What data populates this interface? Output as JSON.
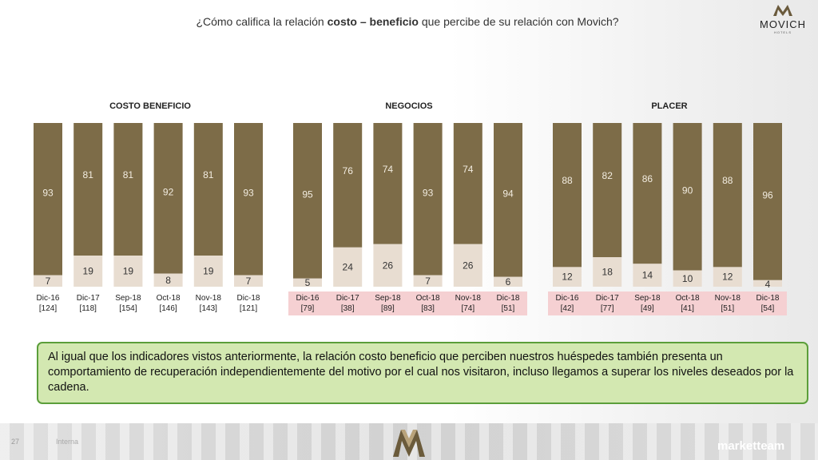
{
  "header": {
    "title_pre": "¿Cómo califica la relación ",
    "title_bold": "costo – beneficio",
    "title_post": " que percibe de su relación con Movich?",
    "logo_text": "MOVICH",
    "logo_sub": "HOTELS"
  },
  "colors": {
    "dark": "#7d6c48",
    "light": "#e8ddd1",
    "label_bg_pink": "#f5d0d2",
    "callout_bg": "#d3e8b1",
    "callout_border": "#5b9e3a"
  },
  "chart_data": [
    {
      "type": "bar",
      "stacked": true,
      "percent": true,
      "title": "COSTO BENEFICIO",
      "categories": [
        "Dic-16",
        "Dic-17",
        "Sep-18",
        "Oct-18",
        "Nov-18",
        "Dic-18"
      ],
      "bases": [
        "[124]",
        "[118]",
        "[154]",
        "[146]",
        "[143]",
        "[121]"
      ],
      "series": [
        {
          "values": [
            93,
            81,
            81,
            92,
            81,
            93
          ]
        },
        {
          "values": [
            7,
            19,
            19,
            8,
            19,
            7
          ]
        }
      ],
      "highlight_labels": false
    },
    {
      "type": "bar",
      "stacked": true,
      "percent": true,
      "title": "NEGOCIOS",
      "categories": [
        "Dic-16",
        "Dic-17",
        "Sep-18",
        "Oct-18",
        "Nov-18",
        "Dic-18"
      ],
      "bases": [
        "[79]",
        "[38]",
        "[89]",
        "[83]",
        "[74]",
        "[51]"
      ],
      "series": [
        {
          "values": [
            95,
            76,
            74,
            93,
            74,
            94
          ]
        },
        {
          "values": [
            5,
            24,
            26,
            7,
            26,
            6
          ]
        }
      ],
      "highlight_labels": true
    },
    {
      "type": "bar",
      "stacked": true,
      "percent": true,
      "title": "PLACER",
      "categories": [
        "Dic-16",
        "Dic-17",
        "Sep-18",
        "Oct-18",
        "Nov-18",
        "Dic-18"
      ],
      "bases": [
        "[42]",
        "[77]",
        "[49]",
        "[41]",
        "[51]",
        "[54]"
      ],
      "series": [
        {
          "values": [
            88,
            82,
            86,
            90,
            88,
            96
          ]
        },
        {
          "values": [
            12,
            18,
            14,
            10,
            12,
            4
          ]
        }
      ],
      "highlight_labels": true
    }
  ],
  "callout": {
    "text": "Al igual que los indicadores vistos anteriormente, la relación costo beneficio que perciben nuestros huéspedes también presenta un comportamiento de recuperación independientemente del motivo por el cual nos visitaron, incluso llegamos a superar los niveles deseados por la cadena."
  },
  "footer": {
    "page_number": "27",
    "label": "Interna",
    "brand": "marketteam"
  }
}
